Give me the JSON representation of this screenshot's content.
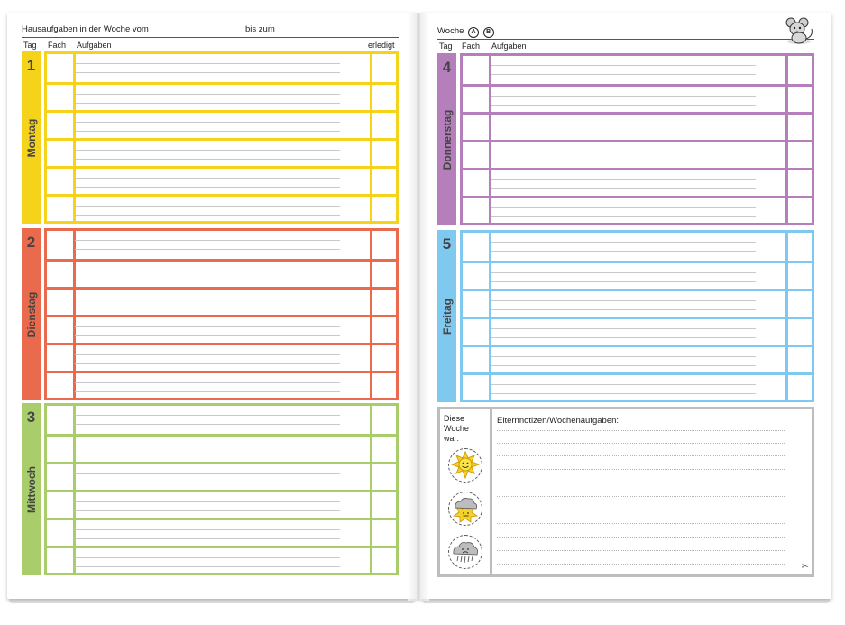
{
  "header_left": {
    "title": "Hausaufgaben in der Woche vom",
    "until": "bis zum",
    "col_day": "Tag",
    "col_subject": "Fach",
    "col_tasks": "Aufgaben",
    "col_done": "erledigt"
  },
  "header_right": {
    "week": "Woche",
    "week_a": "A",
    "week_b": "B",
    "col_day": "Tag",
    "col_subject": "Fach",
    "col_tasks": "Aufgaben"
  },
  "days": [
    {
      "number": "1",
      "name": "Montag",
      "color": "#f6d31b"
    },
    {
      "number": "2",
      "name": "Dienstag",
      "color": "#ea6a4d"
    },
    {
      "number": "3",
      "name": "Mittwoch",
      "color": "#a8cd6a"
    },
    {
      "number": "4",
      "name": "Donnerstag",
      "color": "#b47fba"
    },
    {
      "number": "5",
      "name": "Freitag",
      "color": "#7fc8ef"
    }
  ],
  "notes": {
    "mood_label_1": "Diese",
    "mood_label_2": "Woche",
    "mood_label_3": "war:",
    "parent_notes": "Elternnotizen/Wochenaufgaben:",
    "border_color": "#bdbdbd"
  },
  "icons": [
    "mouse-icon",
    "sun-icon",
    "sun-cloud-icon",
    "rain-cloud-icon",
    "scissors-icon"
  ]
}
